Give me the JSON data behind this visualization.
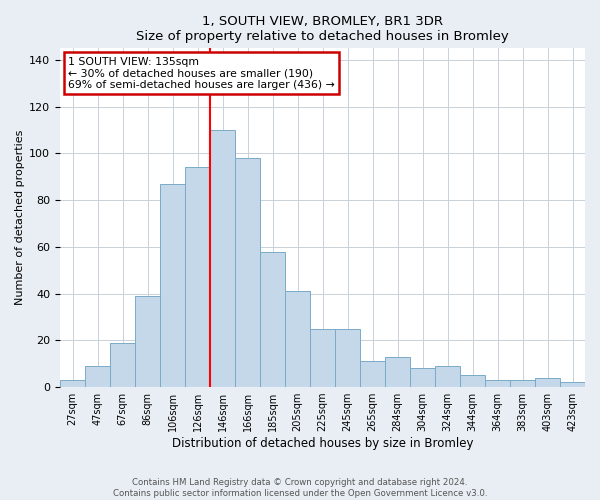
{
  "title": "1, SOUTH VIEW, BROMLEY, BR1 3DR",
  "subtitle": "Size of property relative to detached houses in Bromley",
  "xlabel": "Distribution of detached houses by size in Bromley",
  "ylabel": "Number of detached properties",
  "bar_labels": [
    "27sqm",
    "47sqm",
    "67sqm",
    "86sqm",
    "106sqm",
    "126sqm",
    "146sqm",
    "166sqm",
    "185sqm",
    "205sqm",
    "225sqm",
    "245sqm",
    "265sqm",
    "284sqm",
    "304sqm",
    "324sqm",
    "344sqm",
    "364sqm",
    "383sqm",
    "403sqm",
    "423sqm"
  ],
  "bar_values": [
    3,
    9,
    19,
    39,
    87,
    94,
    110,
    98,
    58,
    41,
    25,
    25,
    11,
    13,
    8,
    9,
    5,
    3,
    3,
    4,
    2
  ],
  "bar_color": "#c5d8ea",
  "bar_edge_color": "#7aaac8",
  "vline_x": 5.5,
  "vline_color": "red",
  "annotation_title": "1 SOUTH VIEW: 135sqm",
  "annotation_line1": "← 30% of detached houses are smaller (190)",
  "annotation_line2": "69% of semi-detached houses are larger (436) →",
  "annotation_box_color": "white",
  "annotation_box_edge": "#cc0000",
  "ylim": [
    0,
    145
  ],
  "yticks": [
    0,
    20,
    40,
    60,
    80,
    100,
    120,
    140
  ],
  "footer1": "Contains HM Land Registry data © Crown copyright and database right 2024.",
  "footer2": "Contains public sector information licensed under the Open Government Licence v3.0.",
  "bg_color": "#e8eef4",
  "plot_bg_color": "#ffffff",
  "grid_color": "#c8d0da"
}
